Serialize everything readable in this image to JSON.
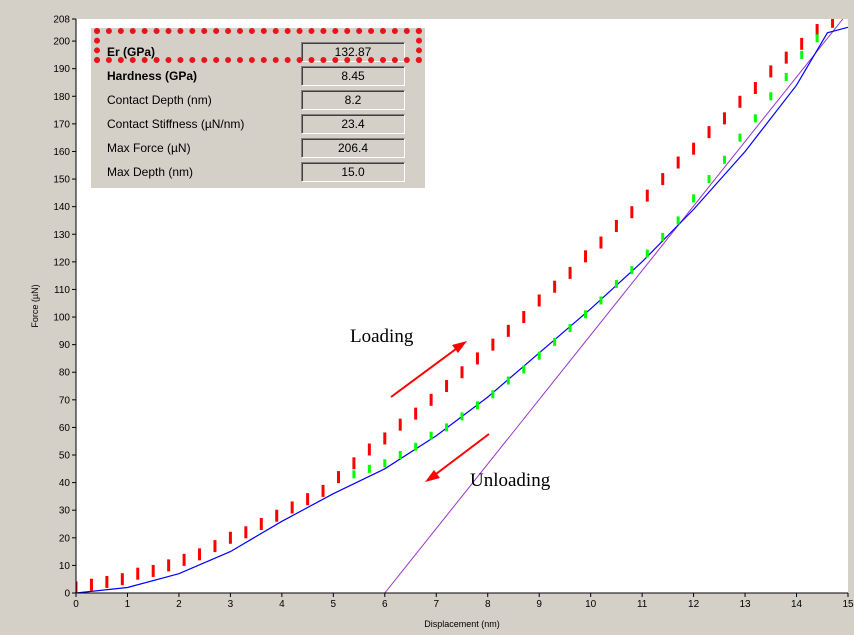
{
  "results": {
    "rows": [
      {
        "label": "Er (GPa)",
        "value": "132.87",
        "bold": true
      },
      {
        "label": "Hardness (GPa)",
        "value": "8.45",
        "bold": true
      },
      {
        "label": "Contact Depth (nm)",
        "value": "8.2",
        "bold": false
      },
      {
        "label": "Contact Stiffness (µN/nm)",
        "value": "23.4",
        "bold": false
      },
      {
        "label": "Max Force (µN)",
        "value": "206.4",
        "bold": false
      },
      {
        "label": "Max Depth (nm)",
        "value": "15.0",
        "bold": false
      }
    ]
  },
  "annotations": {
    "loading": "Loading",
    "unloading": "Unloading"
  },
  "colors": {
    "loading_points": "#ff0000",
    "unloading_points": "#00ff00",
    "fit_curve": "#0000ff",
    "stiffness_line": "#9933cc",
    "arrows": "#ff0000",
    "highlight": "#e8141c"
  },
  "chart_data": {
    "type": "scatter",
    "title": "",
    "xlabel": "Displacement (nm)",
    "ylabel": "Force (µN)",
    "xlim": [
      0,
      15
    ],
    "ylim": [
      0,
      208
    ],
    "xticks": [
      0,
      1,
      2,
      3,
      4,
      5,
      6,
      7,
      8,
      9,
      10,
      11,
      12,
      13,
      14,
      15
    ],
    "yticks": [
      0,
      10,
      20,
      30,
      40,
      50,
      60,
      70,
      80,
      90,
      100,
      110,
      120,
      130,
      140,
      150,
      160,
      170,
      180,
      190,
      200,
      208
    ],
    "grid": false,
    "series": [
      {
        "kind": "scatter",
        "x": [
          0.0,
          0.3,
          0.6,
          0.9,
          1.2,
          1.5,
          1.8,
          2.1,
          2.4,
          2.7,
          3.0,
          3.3,
          3.6,
          3.9,
          4.2,
          4.5,
          4.8,
          5.1,
          5.4,
          5.7,
          6.0,
          6.3,
          6.6,
          6.9,
          7.2,
          7.5,
          7.8,
          8.1,
          8.4,
          8.7,
          9.0,
          9.3,
          9.6,
          9.9,
          10.2,
          10.5,
          10.8,
          11.1,
          11.4,
          11.7,
          12.0,
          12.3,
          12.6,
          12.9,
          13.2,
          13.5,
          13.8,
          14.1,
          14.4,
          14.7
        ],
        "y": [
          2,
          3,
          4,
          5,
          7,
          8,
          10,
          12,
          14,
          17,
          20,
          22,
          25,
          28,
          31,
          34,
          37,
          42,
          47,
          52,
          56,
          61,
          65,
          70,
          75,
          80,
          85,
          90,
          95,
          100,
          106,
          111,
          116,
          122,
          127,
          133,
          138,
          144,
          150,
          156,
          161,
          167,
          172,
          178,
          183,
          189,
          194,
          199,
          204,
          207
        ]
      },
      {
        "kind": "scatter",
        "x": [
          5.4,
          5.7,
          6.0,
          6.3,
          6.6,
          6.9,
          7.2,
          7.5,
          7.8,
          8.1,
          8.4,
          8.7,
          9.0,
          9.3,
          9.6,
          9.9,
          10.2,
          10.5,
          10.8,
          11.1,
          11.4,
          11.7,
          12.0,
          12.3,
          12.6,
          12.9,
          13.2,
          13.5,
          13.8,
          14.1,
          14.4
        ],
        "y": [
          43,
          45,
          47,
          50,
          53,
          57,
          60,
          64,
          68,
          72,
          77,
          81,
          86,
          91,
          96,
          101,
          106,
          112,
          117,
          123,
          129,
          135,
          143,
          150,
          157,
          165,
          172,
          180,
          187,
          195,
          201
        ]
      },
      {
        "kind": "line",
        "x": [
          0,
          1,
          2,
          3,
          4,
          5,
          6,
          7,
          8,
          9,
          10,
          11,
          12,
          13,
          14,
          14.6,
          15
        ],
        "y": [
          0,
          2,
          7,
          15,
          26,
          36,
          45,
          57,
          71,
          87,
          103,
          120,
          139,
          160,
          184,
          203,
          205
        ]
      },
      {
        "kind": "line",
        "x": [
          6.0,
          14.9
        ],
        "y": [
          0,
          208
        ]
      }
    ]
  }
}
